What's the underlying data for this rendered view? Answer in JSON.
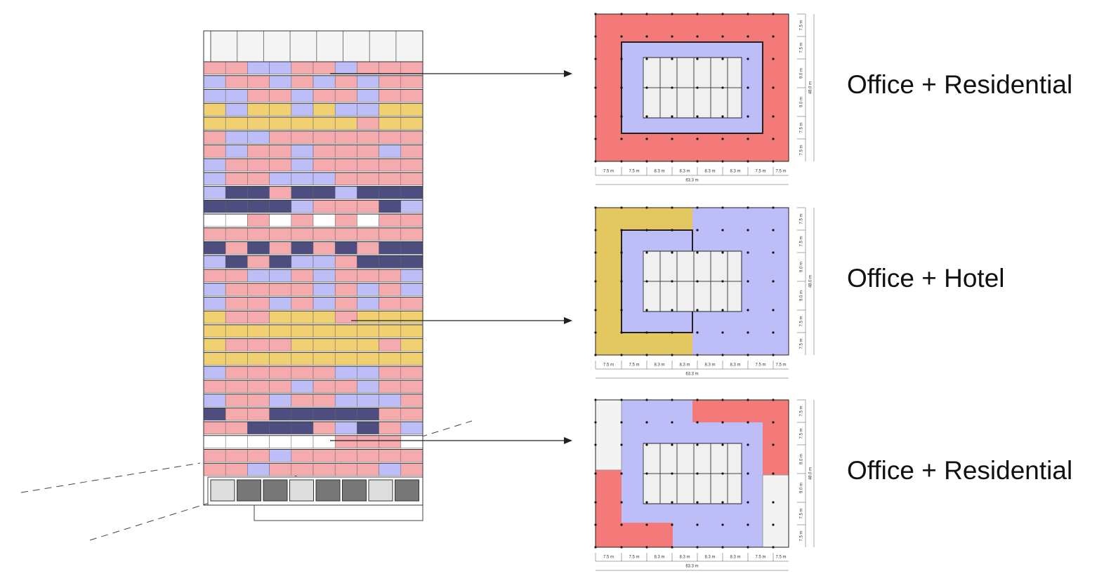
{
  "plans": [
    {
      "label": "Office + Residential",
      "dims_x": [
        "7.5 m",
        "7.5 m",
        "8.3 m",
        "8.3 m",
        "8.3 m",
        "8.3 m",
        "7.5 m",
        "7.5 m"
      ],
      "total_x": "63.3 m",
      "dims_y": [
        "7.5 m",
        "7.5 m",
        "9.0 m",
        "9.0 m",
        "7.5 m",
        "7.5 m"
      ],
      "total_y": "48.0 m"
    },
    {
      "label": "Office + Hotel",
      "dims_x": [
        "7.5 m",
        "7.5 m",
        "8.3 m",
        "8.3 m",
        "8.3 m",
        "8.3 m",
        "7.5 m",
        "7.5 m"
      ],
      "total_x": "63.3 m",
      "dims_y": [
        "7.5 m",
        "7.5 m",
        "9.0 m",
        "9.0 m",
        "7.5 m",
        "7.5 m"
      ],
      "total_y": "48.0 m"
    },
    {
      "label": "Office + Residential",
      "dims_x": [
        "7.5 m",
        "7.5 m",
        "8.3 m",
        "8.3 m",
        "8.3 m",
        "8.3 m",
        "7.5 m",
        "7.5 m"
      ],
      "total_x": "63.3 m",
      "dims_y": [
        "7.5 m",
        "7.5 m",
        "9.0 m",
        "9.0 m",
        "7.5 m",
        "7.5 m"
      ],
      "total_y": "48.0 m"
    }
  ]
}
